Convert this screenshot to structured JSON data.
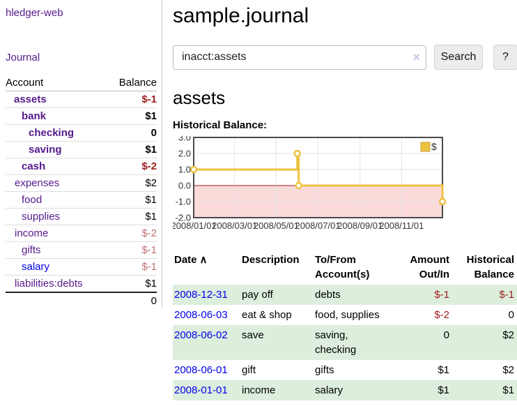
{
  "sidebar": {
    "brand": "hledger-web",
    "journal_link": "Journal",
    "accounts_table": {
      "header_account": "Account",
      "header_balance": "Balance",
      "rows": [
        {
          "name": "assets",
          "balance": "$-1"
        },
        {
          "name": "bank",
          "balance": "$1"
        },
        {
          "name": "checking",
          "balance": "0"
        },
        {
          "name": "saving",
          "balance": "$1"
        },
        {
          "name": "cash",
          "balance": "$-2"
        },
        {
          "name": "expenses",
          "balance": "$2"
        },
        {
          "name": "food",
          "balance": "$1"
        },
        {
          "name": "supplies",
          "balance": "$1"
        },
        {
          "name": "income",
          "balance": "$-2"
        },
        {
          "name": "gifts",
          "balance": "$-1"
        },
        {
          "name": "salary",
          "balance": "$-1"
        },
        {
          "name": "liabilities:debts",
          "balance": "$1"
        }
      ],
      "total": "0"
    }
  },
  "main": {
    "title": "sample.journal",
    "search": {
      "value": "inacct:assets",
      "button_label": "Search",
      "help_label": "?"
    },
    "account_heading": "assets",
    "chart_label": "Historical Balance:"
  },
  "icons": {
    "clear_icon": "×",
    "sort_asc_icon": "∧"
  },
  "chart_data": {
    "type": "line",
    "title": "Historical Balance",
    "step": true,
    "series": [
      {
        "name": "$",
        "color": "#edc240",
        "points": [
          {
            "date": "2008-01-01",
            "x": 0,
            "y": 1
          },
          {
            "date": "2008-06-01",
            "x": 152,
            "y": 2
          },
          {
            "date": "2008-06-03",
            "x": 154,
            "y": 0
          },
          {
            "date": "2008-12-31",
            "x": 365,
            "y": -1
          }
        ]
      }
    ],
    "xlim": [
      0,
      365
    ],
    "ylim": [
      -2,
      3
    ],
    "xticks": [
      {
        "pos": 0,
        "label": "2008/01/01"
      },
      {
        "pos": 60,
        "label": "2008/03/01"
      },
      {
        "pos": 121,
        "label": "2008/05/01"
      },
      {
        "pos": 182,
        "label": "2008/07/01"
      },
      {
        "pos": 244,
        "label": "2008/09/01"
      },
      {
        "pos": 305,
        "label": "2008/11/01"
      }
    ],
    "yticks": [
      {
        "pos": 3,
        "label": "3.0"
      },
      {
        "pos": 2,
        "label": "2.0"
      },
      {
        "pos": 1,
        "label": "1.0"
      },
      {
        "pos": 0,
        "label": "0.0"
      },
      {
        "pos": -1,
        "label": "-1.0"
      },
      {
        "pos": -2,
        "label": "-2.0"
      }
    ],
    "legend": {
      "label": "$",
      "swatch_color": "#edc240",
      "swatch_border": "#c8a337",
      "position": "top-right"
    },
    "grid": true,
    "colors": {
      "zero_line": "#9c1c1c",
      "negative_fill": "#fbdada",
      "grid": "#e3e3e3",
      "border": "#4a4a4a"
    }
  },
  "register": {
    "headers": {
      "date": "Date",
      "description": "Description",
      "accounts": "To/From Account(s)",
      "amount": "Amount Out/In",
      "balance": "Historical Balance"
    },
    "rows": [
      {
        "date": "2008-12-31",
        "description": "pay off",
        "accounts": "debts",
        "amount": "$-1",
        "balance": "$-1"
      },
      {
        "date": "2008-06-03",
        "description": "eat & shop",
        "accounts": "food, supplies",
        "amount": "$-2",
        "balance": "0"
      },
      {
        "date": "2008-06-02",
        "description": "save",
        "accounts": "saving, checking",
        "amount": "0",
        "balance": "$2"
      },
      {
        "date": "2008-06-01",
        "description": "gift",
        "accounts": "gifts",
        "amount": "$1",
        "balance": "$2"
      },
      {
        "date": "2008-01-01",
        "description": "income",
        "accounts": "salary",
        "amount": "$1",
        "balance": "$1"
      }
    ]
  }
}
